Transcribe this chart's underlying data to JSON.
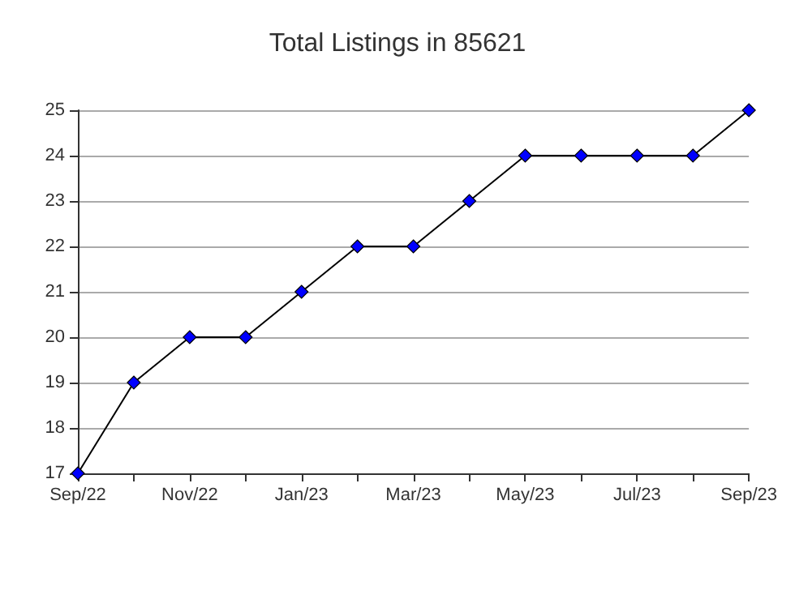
{
  "chart_data": {
    "type": "line",
    "title": "Total Listings in 85621",
    "categories": [
      "Sep/22",
      null,
      "Nov/22",
      null,
      "Jan/23",
      null,
      "Mar/23",
      null,
      "May/23",
      null,
      "Jul/23",
      null,
      "Sep/23"
    ],
    "series": [
      {
        "color": "#0000ff",
        "values": [
          17,
          19,
          20,
          20,
          21,
          22,
          22,
          23,
          24,
          24,
          24,
          24,
          25
        ]
      }
    ],
    "ylim": [
      17,
      25
    ],
    "yticks": [
      17,
      18,
      19,
      20,
      21,
      22,
      23,
      24,
      25
    ],
    "grid": "y",
    "marker": "diamond",
    "line_style": "solid"
  }
}
